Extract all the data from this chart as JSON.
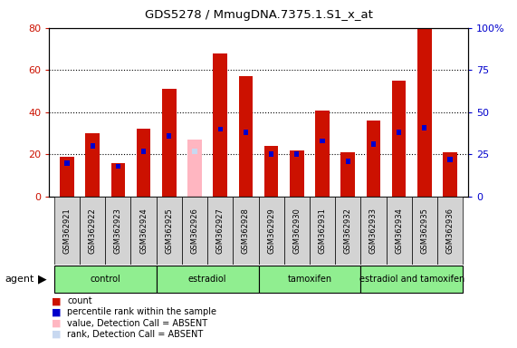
{
  "title": "GDS5278 / MmugDNA.7375.1.S1_x_at",
  "samples": [
    "GSM362921",
    "GSM362922",
    "GSM362923",
    "GSM362924",
    "GSM362925",
    "GSM362926",
    "GSM362927",
    "GSM362928",
    "GSM362929",
    "GSM362930",
    "GSM362931",
    "GSM362932",
    "GSM362933",
    "GSM362934",
    "GSM362935",
    "GSM362936"
  ],
  "count_values": [
    19,
    30,
    16,
    32,
    51,
    null,
    68,
    57,
    24,
    22,
    41,
    21,
    36,
    55,
    80,
    21
  ],
  "rank_values": [
    20,
    30,
    18,
    27,
    36,
    null,
    40,
    38,
    25,
    25,
    33,
    21,
    31,
    38,
    41,
    22
  ],
  "absent_count": [
    null,
    null,
    null,
    null,
    null,
    27,
    null,
    null,
    null,
    null,
    null,
    null,
    null,
    null,
    null,
    null
  ],
  "absent_rank": [
    null,
    null,
    null,
    null,
    null,
    27,
    null,
    null,
    null,
    null,
    null,
    null,
    null,
    null,
    null,
    null
  ],
  "group_labels": [
    "control",
    "estradiol",
    "tamoxifen",
    "estradiol and tamoxifen"
  ],
  "group_starts": [
    0,
    4,
    8,
    12
  ],
  "group_ends": [
    4,
    8,
    12,
    16
  ],
  "count_color": "#cc1100",
  "rank_color": "#0000cc",
  "absent_count_color": "#ffb6c1",
  "absent_rank_color": "#c8d8f0",
  "group_color": "#90ee90",
  "sample_bg": "#d3d3d3",
  "ylim_left": [
    0,
    80
  ],
  "ylim_right": [
    0,
    100
  ],
  "yticks_left": [
    0,
    20,
    40,
    60,
    80
  ],
  "yticks_right": [
    0,
    25,
    50,
    75,
    100
  ],
  "bg_color": "#ffffff"
}
